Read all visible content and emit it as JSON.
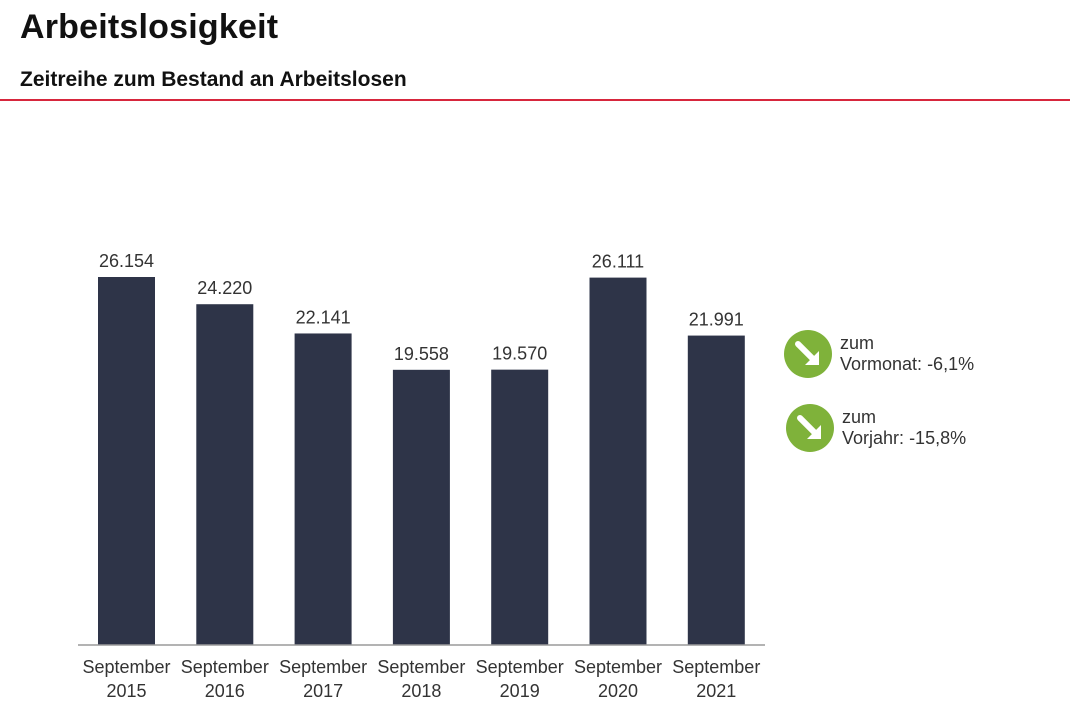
{
  "header": {
    "title": "Arbeitslosigkeit",
    "subtitle": "Zeitreihe zum Bestand an Arbeitslosen"
  },
  "colors": {
    "bar": "#2e3448",
    "accent_rule": "#d7263d",
    "indicator": "#7fb23a"
  },
  "chart_data": {
    "type": "bar",
    "title": "Zeitreihe zum Bestand an Arbeitslosen",
    "categories": [
      [
        "September",
        "2015"
      ],
      [
        "September",
        "2016"
      ],
      [
        "September",
        "2017"
      ],
      [
        "September",
        "2018"
      ],
      [
        "September",
        "2019"
      ],
      [
        "September",
        "2020"
      ],
      [
        "September",
        "2021"
      ]
    ],
    "values": [
      26154,
      24220,
      22141,
      19558,
      19570,
      26111,
      21991
    ],
    "value_labels": [
      "26.154",
      "24.220",
      "22.141",
      "19.558",
      "19.570",
      "26.111",
      "21.991"
    ],
    "xlabel": "",
    "ylabel": "",
    "ylim": [
      0,
      26154
    ]
  },
  "indicators": [
    {
      "icon": "arrow-down-right-icon",
      "line1": "zum",
      "label": "Vormonat:",
      "value": "-6,1%"
    },
    {
      "icon": "arrow-down-right-icon",
      "line1": "zum",
      "label": "Vorjahr:",
      "value": "-15,8%"
    }
  ]
}
